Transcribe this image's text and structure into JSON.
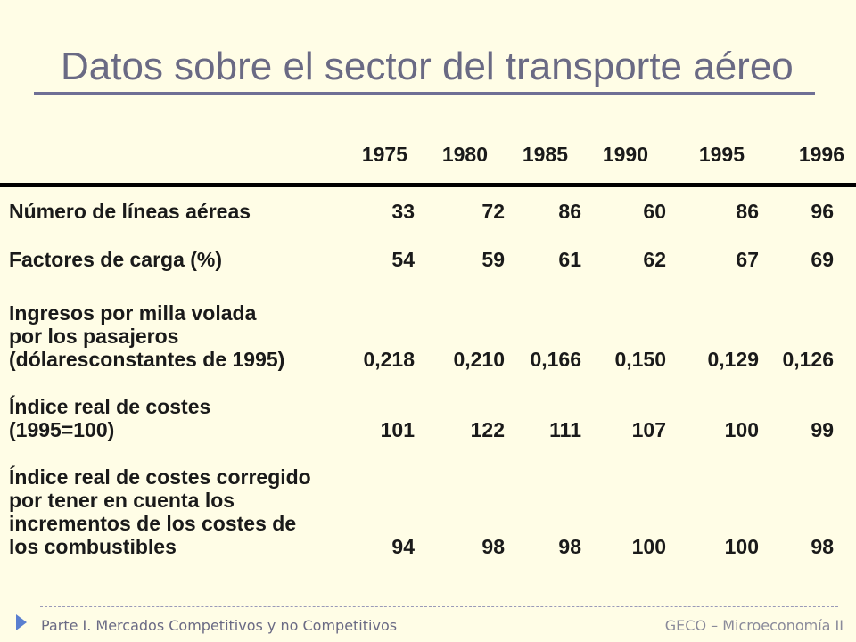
{
  "slide": {
    "title": "Datos sobre el sector del transporte aéreo"
  },
  "table": {
    "years": [
      "1975",
      "1980",
      "1985",
      "1990",
      "1995",
      "1996"
    ],
    "rows": [
      {
        "label_lines": [
          "Número de líneas aéreas"
        ],
        "values": [
          "33",
          "72",
          "86",
          "60",
          "86",
          "96"
        ]
      },
      {
        "label_lines": [
          "Factores de carga (%)"
        ],
        "values": [
          "54",
          "59",
          "61",
          "62",
          "67",
          "69"
        ]
      },
      {
        "label_lines": [
          "Ingresos por milla volada",
          "por los pasajeros",
          "(dólaresconstantes de 1995)"
        ],
        "values": [
          "0,218",
          "0,210",
          "0,166",
          "0,150",
          "0,129",
          "0,126"
        ]
      },
      {
        "label_lines": [
          "Índice real de costes",
          "(1995=100)"
        ],
        "values": [
          "101",
          "122",
          "111",
          "107",
          "100",
          "99"
        ]
      },
      {
        "label_lines": [
          "Índice real de costes corregido",
          "por tener en cuenta los",
          "incrementos de los costes de",
          "los combustibles"
        ],
        "values": [
          "94",
          "98",
          "98",
          "100",
          "100",
          "98"
        ]
      }
    ]
  },
  "footer": {
    "left": "Parte I. Mercados Competitivos y no Competitivos",
    "right": "GECO – Microeconomía II"
  },
  "colors": {
    "background": "#fffde6",
    "title": "#6a6a84",
    "title_rule": "#6f6f95",
    "accent_arrow": "#5a7fd0"
  }
}
